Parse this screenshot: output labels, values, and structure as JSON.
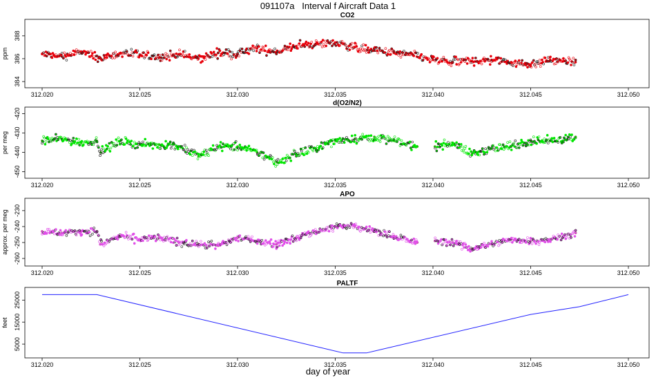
{
  "page": {
    "title": "091107a   Interval f Aircraft Data 1",
    "xlabel": "day of year"
  },
  "colors": {
    "co2": "#e8000b",
    "o2": "#00e600",
    "apo": "#e04fe8",
    "paltf": "#2020ff"
  },
  "chart_data": [
    {
      "type": "scatter",
      "title": "CO2",
      "ylabel": "ppm",
      "xlim": [
        312.02,
        312.05
      ],
      "ylim": [
        383.7,
        389.2
      ],
      "x_ticks": [
        "312.020",
        "312.025",
        "312.030",
        "312.035",
        "312.040",
        "312.045",
        "312.050"
      ],
      "y_ticks": [
        "384",
        "386",
        "388"
      ],
      "series": [
        {
          "x": [
            312.02,
            312.021,
            312.022,
            312.023,
            312.024,
            312.025,
            312.026,
            312.027,
            312.028,
            312.029,
            312.03,
            312.031,
            312.032,
            312.033,
            312.034,
            312.035,
            312.036,
            312.037,
            312.038,
            312.039,
            312.04,
            312.041,
            312.042,
            312.043,
            312.044,
            312.045,
            312.046,
            312.0473
          ],
          "values": [
            386.4,
            386.2,
            386.6,
            386.0,
            386.5,
            386.3,
            386.1,
            386.4,
            386.0,
            386.5,
            386.4,
            386.9,
            386.6,
            387.1,
            387.3,
            387.4,
            387.0,
            386.7,
            386.5,
            386.3,
            385.9,
            385.7,
            385.8,
            385.9,
            385.7,
            385.5,
            385.9,
            385.7
          ]
        }
      ]
    },
    {
      "type": "scatter",
      "title": "d(O2/N2)",
      "ylabel": "per meg",
      "xlim": [
        312.02,
        312.05
      ],
      "ylim": [
        -452,
        -418
      ],
      "x_ticks": [
        "312.020",
        "312.025",
        "312.030",
        "312.035",
        "312.040",
        "312.045",
        "312.050"
      ],
      "y_ticks": [
        "-450",
        "-440",
        "-430",
        "-420"
      ],
      "series": [
        {
          "x": [
            312.02,
            312.021,
            312.022,
            312.0228,
            312.023,
            312.024,
            312.025,
            312.026,
            312.027,
            312.028,
            312.029,
            312.03,
            312.031,
            312.032,
            312.033,
            312.034,
            312.035,
            312.036,
            312.037,
            312.038,
            312.0392,
            null,
            312.0401,
            312.041,
            312.042,
            312.043,
            312.044,
            312.045,
            312.046,
            312.0473
          ],
          "values": [
            -434,
            -433,
            -435,
            -434,
            -440,
            -434,
            -436,
            -436,
            -437,
            -442,
            -437,
            -437,
            -440,
            -445,
            -441,
            -438,
            -434,
            -433,
            -432,
            -434,
            -437,
            null,
            -437,
            -435,
            -441,
            -438,
            -437,
            -434,
            -434,
            -432
          ]
        }
      ]
    },
    {
      "type": "scatter",
      "title": "APO",
      "ylabel": "approx. per meg",
      "xlim": [
        312.02,
        312.05
      ],
      "ylim": [
        -263,
        -224
      ],
      "x_ticks": [
        "312.020",
        "312.025",
        "312.030",
        "312.035",
        "312.040",
        "312.045",
        "312.050"
      ],
      "y_ticks": [
        "-260",
        "-250",
        "-240",
        "-230"
      ],
      "series": [
        {
          "x": [
            312.02,
            312.021,
            312.022,
            312.0228,
            312.023,
            312.024,
            312.025,
            312.026,
            312.027,
            312.028,
            312.029,
            312.03,
            312.031,
            312.032,
            312.033,
            312.034,
            312.035,
            312.036,
            312.037,
            312.038,
            312.0392,
            null,
            312.0401,
            312.041,
            312.042,
            312.043,
            312.044,
            312.045,
            312.046,
            312.0473
          ],
          "values": [
            -243,
            -244,
            -243,
            -243,
            -251,
            -246,
            -248,
            -247,
            -250,
            -251,
            -252,
            -247,
            -249,
            -251,
            -247,
            -243,
            -240,
            -240,
            -243,
            -246,
            -250,
            null,
            -249,
            -250,
            -254,
            -251,
            -248,
            -249,
            -248,
            -244
          ]
        }
      ]
    },
    {
      "type": "line",
      "title": "PALTF",
      "ylabel": "feet",
      "xlim": [
        312.02,
        312.05
      ],
      "ylim": [
        0,
        29500
      ],
      "x_ticks": [
        "312.020",
        "312.025",
        "312.030",
        "312.035",
        "312.040",
        "312.045",
        "312.050"
      ],
      "y_ticks": [
        "5000",
        "15000",
        "25000"
      ],
      "series": [
        {
          "x": [
            312.02,
            312.0228,
            312.0354,
            312.0366,
            312.045,
            312.0475,
            312.05
          ],
          "values": [
            27500,
            27500,
            1000,
            1000,
            18500,
            22000,
            27500
          ]
        }
      ]
    }
  ]
}
